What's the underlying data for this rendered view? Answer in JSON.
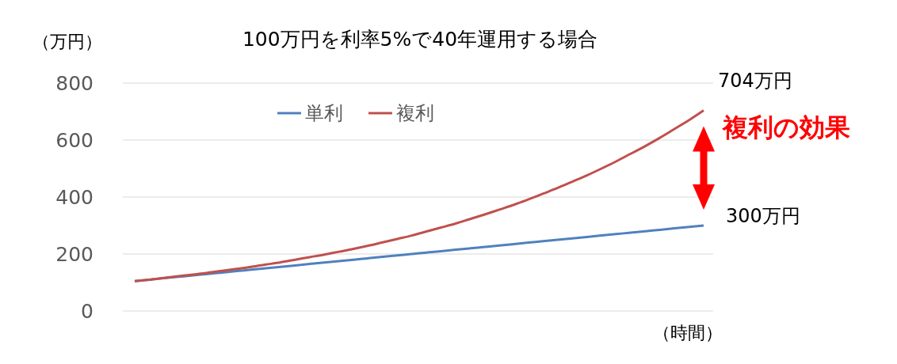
{
  "chart_data": {
    "type": "line",
    "title": "100万円を利率5%で40年運用する場合",
    "xlabel": "（時間）",
    "ylabel": "（万円）",
    "categories": [
      null,
      null,
      null,
      null,
      null,
      null,
      null,
      null,
      null,
      null,
      null,
      null,
      null,
      null,
      null,
      null,
      null,
      null,
      null,
      null,
      null,
      null,
      null,
      null,
      null,
      null,
      null,
      null,
      null,
      null,
      null,
      null,
      null,
      null,
      null,
      null,
      null,
      null,
      null,
      null
    ],
    "series": [
      {
        "name": "単利",
        "color": "#4f81bd",
        "values": [
          105,
          110,
          115,
          120,
          125,
          130,
          135,
          140,
          145,
          150,
          155,
          160,
          165,
          170,
          175,
          180,
          185,
          190,
          195,
          200,
          205,
          210,
          215,
          220,
          225,
          230,
          235,
          240,
          245,
          250,
          255,
          260,
          265,
          270,
          275,
          280,
          285,
          290,
          295,
          300
        ]
      },
      {
        "name": "複利",
        "color": "#c0504d",
        "values": [
          105,
          110,
          116,
          122,
          128,
          134,
          141,
          148,
          155,
          163,
          171,
          180,
          189,
          198,
          208,
          218,
          229,
          241,
          253,
          265,
          279,
          293,
          307,
          323,
          339,
          356,
          373,
          392,
          412,
          432,
          454,
          476,
          500,
          525,
          552,
          579,
          608,
          639,
          670,
          704
        ]
      }
    ],
    "ylim": [
      0,
      800
    ],
    "yticks": [
      0,
      200,
      400,
      600,
      800
    ],
    "grid": "y",
    "legend": "top",
    "marker": "none",
    "line_style": "solid",
    "annotations": [
      "704万円",
      "300万円",
      "複利の効果"
    ]
  }
}
